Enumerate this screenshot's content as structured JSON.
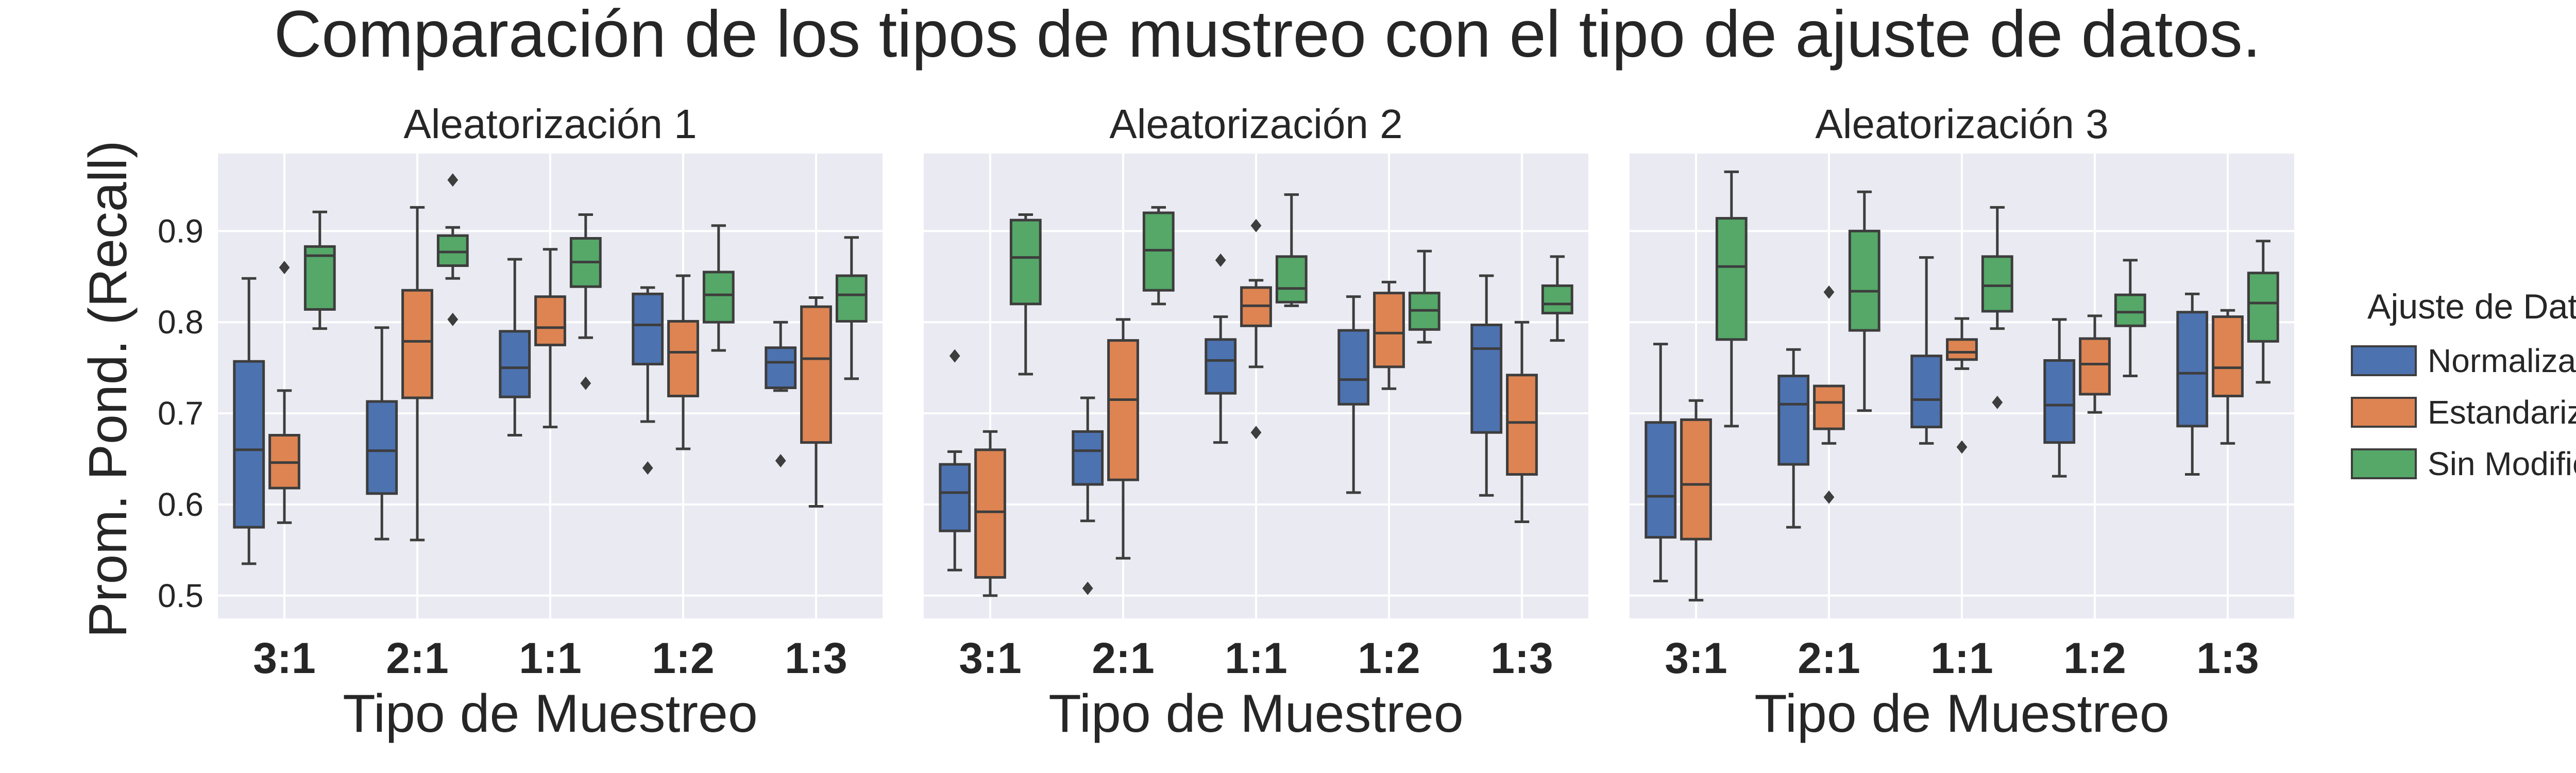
{
  "chart_data": {
    "type": "boxplot",
    "title": "Comparación de los tipos de mustreo con el tipo de ajuste de datos.",
    "ylabel": "Prom. Pond. (Recall)",
    "xlabel": "Tipo de Muestreo",
    "yticks": [
      "0.5",
      "0.6",
      "0.7",
      "0.8",
      "0.9"
    ],
    "ylim": [
      0.475,
      0.985
    ],
    "grid": true,
    "categories": [
      "3:1",
      "2:1",
      "1:1",
      "1:2",
      "1:3"
    ],
    "legend": {
      "title": "Ajuste de Datos",
      "position": "right",
      "entries": [
        {
          "name": "Normalizados",
          "color": "#4c72b0"
        },
        {
          "name": "Estandarizados",
          "color": "#dd8452"
        },
        {
          "name": "Sin Modificación",
          "color": "#55a868"
        }
      ]
    },
    "panels": [
      {
        "title": "Aleatorización 1",
        "boxes": [
          [
            {
              "q1": 0.575,
              "med": 0.66,
              "q3": 0.757,
              "lo": 0.535,
              "hi": 0.848,
              "out": []
            },
            {
              "q1": 0.618,
              "med": 0.646,
              "q3": 0.676,
              "lo": 0.58,
              "hi": 0.725,
              "out": [
                0.86
              ]
            },
            {
              "q1": 0.814,
              "med": 0.873,
              "q3": 0.883,
              "lo": 0.793,
              "hi": 0.921,
              "out": []
            }
          ],
          [
            {
              "q1": 0.612,
              "med": 0.659,
              "q3": 0.713,
              "lo": 0.562,
              "hi": 0.794,
              "out": []
            },
            {
              "q1": 0.717,
              "med": 0.779,
              "q3": 0.835,
              "lo": 0.561,
              "hi": 0.926,
              "out": []
            },
            {
              "q1": 0.862,
              "med": 0.877,
              "q3": 0.895,
              "lo": 0.848,
              "hi": 0.904,
              "out": [
                0.956,
                0.803
              ]
            }
          ],
          [
            {
              "q1": 0.718,
              "med": 0.75,
              "q3": 0.79,
              "lo": 0.676,
              "hi": 0.869,
              "out": []
            },
            {
              "q1": 0.775,
              "med": 0.794,
              "q3": 0.828,
              "lo": 0.685,
              "hi": 0.88,
              "out": []
            },
            {
              "q1": 0.839,
              "med": 0.866,
              "q3": 0.892,
              "lo": 0.783,
              "hi": 0.918,
              "out": [
                0.733
              ]
            }
          ],
          [
            {
              "q1": 0.754,
              "med": 0.797,
              "q3": 0.831,
              "lo": 0.691,
              "hi": 0.838,
              "out": [
                0.64
              ]
            },
            {
              "q1": 0.719,
              "med": 0.767,
              "q3": 0.801,
              "lo": 0.661,
              "hi": 0.851,
              "out": []
            },
            {
              "q1": 0.8,
              "med": 0.83,
              "q3": 0.855,
              "lo": 0.769,
              "hi": 0.906,
              "out": []
            }
          ],
          [
            {
              "q1": 0.728,
              "med": 0.756,
              "q3": 0.772,
              "lo": 0.725,
              "hi": 0.8,
              "out": [
                0.648
              ]
            },
            {
              "q1": 0.668,
              "med": 0.76,
              "q3": 0.817,
              "lo": 0.598,
              "hi": 0.827,
              "out": []
            },
            {
              "q1": 0.801,
              "med": 0.83,
              "q3": 0.851,
              "lo": 0.738,
              "hi": 0.893,
              "out": []
            }
          ]
        ]
      },
      {
        "title": "Aleatorización 2",
        "boxes": [
          [
            {
              "q1": 0.571,
              "med": 0.613,
              "q3": 0.644,
              "lo": 0.528,
              "hi": 0.658,
              "out": [
                0.763
              ]
            },
            {
              "q1": 0.52,
              "med": 0.592,
              "q3": 0.66,
              "lo": 0.5,
              "hi": 0.68,
              "out": []
            },
            {
              "q1": 0.82,
              "med": 0.871,
              "q3": 0.912,
              "lo": 0.743,
              "hi": 0.918,
              "out": []
            }
          ],
          [
            {
              "q1": 0.622,
              "med": 0.659,
              "q3": 0.68,
              "lo": 0.582,
              "hi": 0.717,
              "out": [
                0.508
              ]
            },
            {
              "q1": 0.627,
              "med": 0.715,
              "q3": 0.78,
              "lo": 0.541,
              "hi": 0.803,
              "out": []
            },
            {
              "q1": 0.835,
              "med": 0.879,
              "q3": 0.92,
              "lo": 0.82,
              "hi": 0.926,
              "out": []
            }
          ],
          [
            {
              "q1": 0.722,
              "med": 0.758,
              "q3": 0.781,
              "lo": 0.668,
              "hi": 0.806,
              "out": [
                0.868
              ]
            },
            {
              "q1": 0.796,
              "med": 0.818,
              "q3": 0.838,
              "lo": 0.751,
              "hi": 0.846,
              "out": [
                0.906,
                0.679
              ]
            },
            {
              "q1": 0.822,
              "med": 0.837,
              "q3": 0.872,
              "lo": 0.818,
              "hi": 0.94,
              "out": []
            }
          ],
          [
            {
              "q1": 0.71,
              "med": 0.737,
              "q3": 0.791,
              "lo": 0.613,
              "hi": 0.828,
              "out": []
            },
            {
              "q1": 0.751,
              "med": 0.788,
              "q3": 0.832,
              "lo": 0.727,
              "hi": 0.844,
              "out": []
            },
            {
              "q1": 0.792,
              "med": 0.813,
              "q3": 0.832,
              "lo": 0.778,
              "hi": 0.878,
              "out": []
            }
          ],
          [
            {
              "q1": 0.679,
              "med": 0.771,
              "q3": 0.797,
              "lo": 0.61,
              "hi": 0.851,
              "out": []
            },
            {
              "q1": 0.633,
              "med": 0.69,
              "q3": 0.742,
              "lo": 0.581,
              "hi": 0.8,
              "out": []
            },
            {
              "q1": 0.81,
              "med": 0.82,
              "q3": 0.84,
              "lo": 0.78,
              "hi": 0.872,
              "out": []
            }
          ]
        ]
      },
      {
        "title": "Aleatorización 3",
        "boxes": [
          [
            {
              "q1": 0.564,
              "med": 0.609,
              "q3": 0.69,
              "lo": 0.516,
              "hi": 0.776,
              "out": []
            },
            {
              "q1": 0.562,
              "med": 0.622,
              "q3": 0.693,
              "lo": 0.495,
              "hi": 0.714,
              "out": []
            },
            {
              "q1": 0.781,
              "med": 0.861,
              "q3": 0.914,
              "lo": 0.686,
              "hi": 0.965,
              "out": []
            }
          ],
          [
            {
              "q1": 0.644,
              "med": 0.71,
              "q3": 0.741,
              "lo": 0.575,
              "hi": 0.77,
              "out": []
            },
            {
              "q1": 0.683,
              "med": 0.712,
              "q3": 0.73,
              "lo": 0.667,
              "hi": 0.73,
              "out": [
                0.833,
                0.608
              ]
            },
            {
              "q1": 0.791,
              "med": 0.834,
              "q3": 0.9,
              "lo": 0.703,
              "hi": 0.943,
              "out": []
            }
          ],
          [
            {
              "q1": 0.685,
              "med": 0.715,
              "q3": 0.763,
              "lo": 0.667,
              "hi": 0.871,
              "out": []
            },
            {
              "q1": 0.759,
              "med": 0.767,
              "q3": 0.781,
              "lo": 0.749,
              "hi": 0.804,
              "out": [
                0.663
              ]
            },
            {
              "q1": 0.812,
              "med": 0.84,
              "q3": 0.872,
              "lo": 0.793,
              "hi": 0.926,
              "out": [
                0.712
              ]
            }
          ],
          [
            {
              "q1": 0.668,
              "med": 0.709,
              "q3": 0.758,
              "lo": 0.631,
              "hi": 0.803,
              "out": []
            },
            {
              "q1": 0.721,
              "med": 0.754,
              "q3": 0.782,
              "lo": 0.701,
              "hi": 0.807,
              "out": []
            },
            {
              "q1": 0.796,
              "med": 0.811,
              "q3": 0.83,
              "lo": 0.741,
              "hi": 0.868,
              "out": []
            }
          ],
          [
            {
              "q1": 0.686,
              "med": 0.744,
              "q3": 0.811,
              "lo": 0.633,
              "hi": 0.831,
              "out": []
            },
            {
              "q1": 0.719,
              "med": 0.75,
              "q3": 0.806,
              "lo": 0.667,
              "hi": 0.813,
              "out": []
            },
            {
              "q1": 0.779,
              "med": 0.821,
              "q3": 0.854,
              "lo": 0.734,
              "hi": 0.889,
              "out": []
            }
          ]
        ]
      }
    ]
  }
}
